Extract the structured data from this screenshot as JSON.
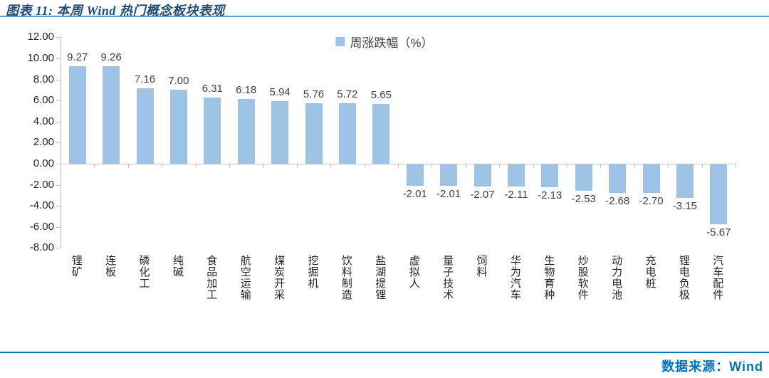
{
  "header": {
    "title": "图表 11: 本周 Wind 热门概念板块表现"
  },
  "footer": {
    "source": "数据来源：Wind"
  },
  "colors": {
    "bar": "#9DC3E6",
    "top_rule": "#5B9BD5",
    "bottom_rule": "#0070C0",
    "axis": "#BFBFBF",
    "title_text": "#1F4E79",
    "source_text": "#0070C0",
    "value_label": "#404040",
    "tick_label": "#262626",
    "legend_text": "#404040"
  },
  "chart_data": {
    "type": "bar",
    "title": "本周Wind热门概念板块表现",
    "legend_label": "周涨跌幅（%）",
    "legend_position": "top-center",
    "grid": false,
    "categories": [
      "锂矿",
      "连板",
      "磷化工",
      "纯碱",
      "食品加工",
      "航空运输",
      "煤炭开采",
      "挖掘机",
      "饮料制造",
      "盐湖提锂",
      "虚拟人",
      "量子技术",
      "饲料",
      "华为汽车",
      "生物育种",
      "炒股软件",
      "动力电池",
      "充电桩",
      "锂电负极",
      "汽车配件"
    ],
    "values": [
      9.27,
      9.26,
      7.16,
      7.0,
      6.31,
      6.18,
      5.94,
      5.76,
      5.72,
      5.65,
      -2.01,
      -2.01,
      -2.07,
      -2.11,
      -2.13,
      -2.53,
      -2.68,
      -2.7,
      -3.15,
      -5.67
    ],
    "xlabel": "",
    "ylabel": "",
    "ylim": [
      -8,
      12
    ],
    "ytick_step": 2,
    "ytick_decimals": 2,
    "value_label_decimals": 2,
    "value_labels_shown": true
  }
}
